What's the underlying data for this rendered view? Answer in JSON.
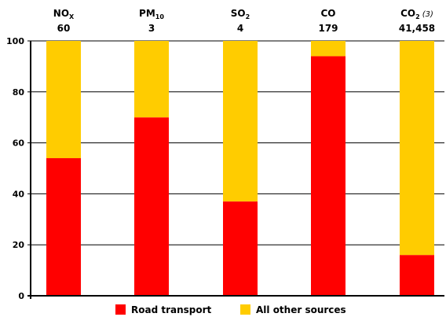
{
  "chart_data": {
    "type": "bar",
    "stacked": true,
    "title": "",
    "xlabel": "",
    "ylabel": "",
    "ylim": [
      0,
      100
    ],
    "yticks": [
      0,
      20,
      40,
      60,
      80,
      100
    ],
    "grid": true,
    "legend_position": "bottom",
    "categories": [
      {
        "main": "NO",
        "sub": "X",
        "note": "",
        "total": "60"
      },
      {
        "main": "PM",
        "sub": "10",
        "note": "",
        "total": "3"
      },
      {
        "main": "SO",
        "sub": "2",
        "note": "",
        "total": "4"
      },
      {
        "main": "CO",
        "sub": "",
        "note": "",
        "total": "179"
      },
      {
        "main": "CO",
        "sub": "2",
        "note": "(3)",
        "total": "41,458"
      }
    ],
    "series": [
      {
        "name": "Road transport",
        "color": "#ff0000",
        "values": [
          54,
          70,
          37,
          94,
          16
        ]
      },
      {
        "name": "All other sources",
        "color": "#ffcc00",
        "values": [
          46,
          30,
          63,
          6,
          84
        ]
      }
    ]
  }
}
